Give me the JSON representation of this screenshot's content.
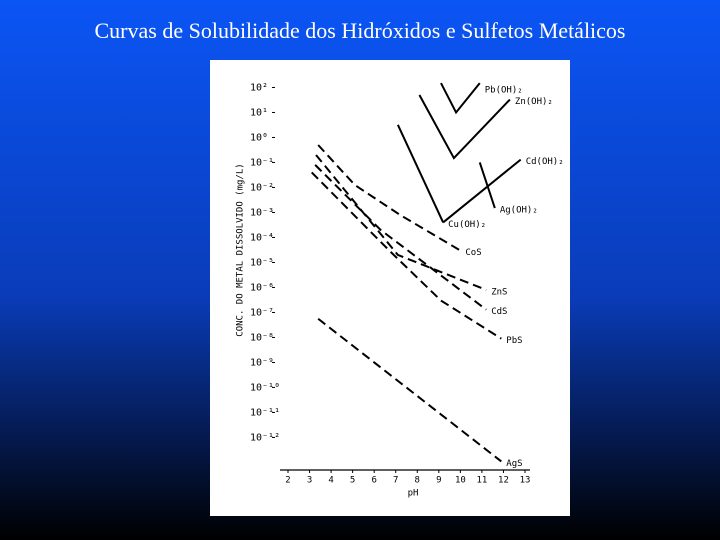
{
  "chart_data": {
    "type": "line",
    "title": "Curvas de Solubilidade dos Hidróxidos e Sulfetos Metálicos",
    "x_label": "pH",
    "y_label": "CONC. DO METAL DISSOLVIDO (mg/L)",
    "log_y": true,
    "xlim": [
      2,
      13
    ],
    "xticks": [
      2,
      3,
      4,
      5,
      6,
      7,
      8,
      9,
      10,
      11,
      12,
      13
    ],
    "ylim": [
      5e-14,
      500
    ],
    "yticks": [
      {
        "value": 100,
        "label": "10²"
      },
      {
        "value": 10,
        "label": "10¹"
      },
      {
        "value": 1,
        "label": "10⁰"
      },
      {
        "value": 0.1,
        "label": "10⁻¹"
      },
      {
        "value": 0.01,
        "label": "10⁻²"
      },
      {
        "value": 0.001,
        "label": "10⁻³"
      },
      {
        "value": 0.0001,
        "label": "10⁻⁴"
      },
      {
        "value": 1e-05,
        "label": "10⁻⁵"
      },
      {
        "value": 1e-06,
        "label": "10⁻⁶"
      },
      {
        "value": 1e-07,
        "label": "10⁻⁷"
      },
      {
        "value": 1e-08,
        "label": "10⁻⁸"
      },
      {
        "value": 1e-09,
        "label": "10⁻⁹"
      },
      {
        "value": 1e-10,
        "label": "10⁻¹⁰"
      },
      {
        "value": 1e-11,
        "label": "10⁻¹¹"
      },
      {
        "value": 1e-12,
        "label": "10⁻¹²"
      }
    ],
    "series": [
      {
        "name": "Pb(OH)₂",
        "color": "#000000",
        "style": "solid",
        "x": [
          9.1,
          9.8,
          10.9
        ],
        "values": [
          150,
          10,
          150
        ]
      },
      {
        "name": "Zn(OH)₂",
        "color": "#000000",
        "style": "solid",
        "x": [
          8.1,
          9.7,
          12.3
        ],
        "values": [
          50,
          0.15,
          33
        ]
      },
      {
        "name": "Cu(OH)₂",
        "color": "#000000",
        "style": "solid",
        "x": [
          7.1,
          9.2
        ],
        "values": [
          3.2,
          0.0004
        ]
      },
      {
        "name": "Ag(OH)₂",
        "color": "#000000",
        "style": "solid",
        "x": [
          10.9,
          11.6
        ],
        "values": [
          0.1,
          0.0015
        ]
      },
      {
        "name": "Cd(OH)₂",
        "color": "#000000",
        "style": "solid",
        "x": [
          9.2,
          12.8
        ],
        "values": [
          0.0004,
          0.13
        ]
      },
      {
        "name": "CoS",
        "color": "#000000",
        "style": "dashed",
        "x": [
          3.4,
          5.1,
          7.2,
          10
        ],
        "values": [
          0.5,
          0.0126,
          0.0008,
          3e-05
        ]
      },
      {
        "name": "ZnS",
        "color": "#000000",
        "style": "dashed",
        "x": [
          3.3,
          7.1,
          11.2
        ],
        "values": [
          0.2,
          2e-05,
          8e-07
        ]
      },
      {
        "name": "CdS",
        "color": "#000000",
        "style": "dashed",
        "x": [
          3.26,
          6.3,
          11.2
        ],
        "values": [
          0.08,
          0.0002,
          1.3e-07
        ]
      },
      {
        "name": "PbS",
        "color": "#000000",
        "style": "dashed",
        "x": [
          3.1,
          6.7,
          9.1,
          11.9
        ],
        "values": [
          0.04,
          3e-05,
          3e-07,
          9e-09
        ]
      },
      {
        "name": "AgS",
        "color": "#000000",
        "style": "dashed",
        "x": [
          3.4,
          11.9
        ],
        "values": [
          5.6e-08,
          1.1e-13
        ]
      }
    ]
  }
}
